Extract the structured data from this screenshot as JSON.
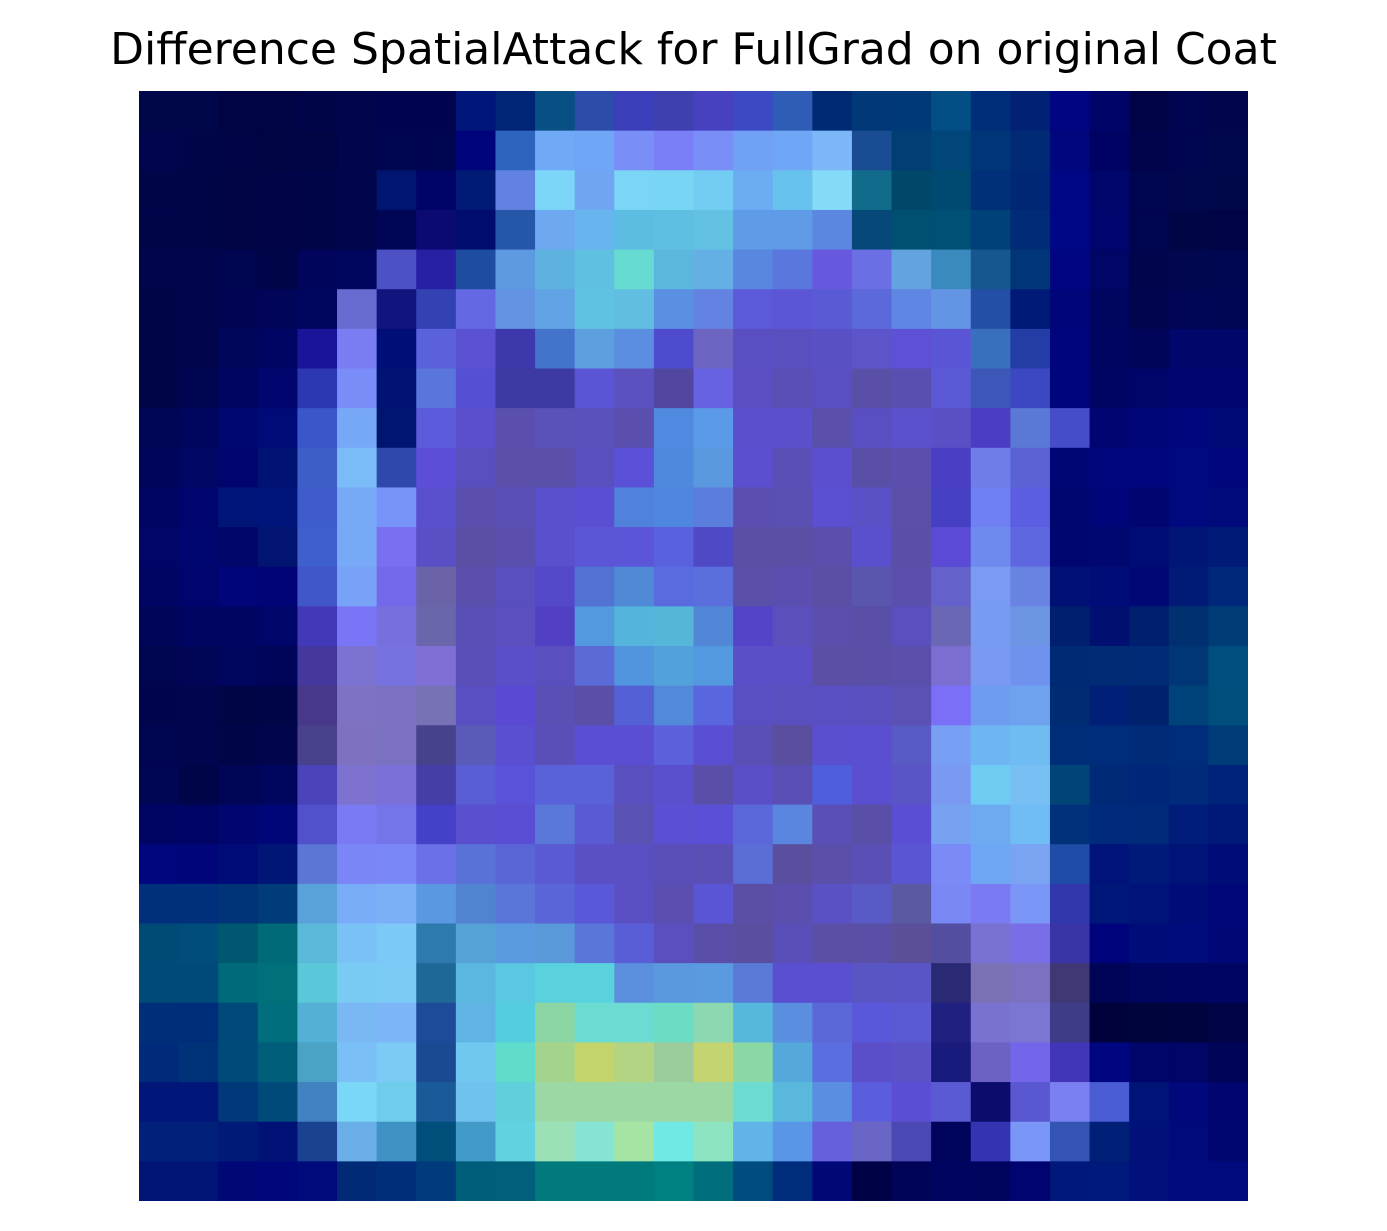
{
  "chart_data": {
    "type": "heatmap",
    "title": "Difference SpatialAttack for FullGrad on original Coat",
    "xlabel": "",
    "ylabel": "",
    "axes": "off",
    "grid": false,
    "legend": "none",
    "rows": 28,
    "cols": 28,
    "colormap": "dark navy background with blue-violet mid tones and cyan/green/yellow highlights (overlay of saliency map on image)",
    "cells_rgb": [
      [
        "#00064a",
        "#00064a",
        "#000445",
        "#000444",
        "#000448",
        "#00054c",
        "#00044e",
        "#00044e",
        "#001678",
        "#002476",
        "#084f83",
        "#2c4ca9",
        "#3a3fb9",
        "#3d40ae",
        "#4741bf",
        "#3b49c3",
        "#2f5db5",
        "#002a74",
        "#003878",
        "#003977",
        "#034e85",
        "#002d79",
        "#002174",
        "#000581",
        "#000469",
        "#000447",
        "#000552",
        "#00054c"
      ],
      [
        "#00054e",
        "#00054a",
        "#000446",
        "#000442",
        "#000445",
        "#00054c",
        "#00054f",
        "#000550",
        "#00047b",
        "#2f64be",
        "#70aaf7",
        "#70a6f6",
        "#7a8ef8",
        "#7a7ff7",
        "#7a8ef8",
        "#70a1f5",
        "#70a6f6",
        "#7cb8f8",
        "#1a4c93",
        "#003e74",
        "#004678",
        "#003577",
        "#002a76",
        "#00077c",
        "#000263",
        "#00034a",
        "#00054f",
        "#00074c"
      ],
      [
        "#00054a",
        "#000548",
        "#000445",
        "#000447",
        "#000448",
        "#00054c",
        "#00156f",
        "#000468",
        "#001a76",
        "#6182e0",
        "#7cd6f8",
        "#70a5f2",
        "#7bd5f6",
        "#79d5f4",
        "#73ccf4",
        "#6cacf2",
        "#67c3ee",
        "#85daf8",
        "#106c8a",
        "#004769",
        "#004970",
        "#003178",
        "#002676",
        "#000784",
        "#00056c",
        "#00054f",
        "#00074c",
        "#00074a"
      ],
      [
        "#00054a",
        "#000548",
        "#000445",
        "#000446",
        "#000449",
        "#00054c",
        "#000555",
        "#0b0a73",
        "#000c6e",
        "#2556a8",
        "#6ea8f0",
        "#67b4ef",
        "#5cbce2",
        "#5fbfe2",
        "#63c1e4",
        "#5f9be6",
        "#5f9be6",
        "#5b87e0",
        "#07487b",
        "#005071",
        "#004f74",
        "#00417a",
        "#002b76",
        "#000786",
        "#00056e",
        "#00054f",
        "#000545",
        "#000446"
      ],
      [
        "#00054c",
        "#00054c",
        "#000550",
        "#000449",
        "#00045a",
        "#00065e",
        "#4c52c5",
        "#2720a5",
        "#1e4da0",
        "#5d9ae2",
        "#5eb2e0",
        "#5fc0e1",
        "#66dbd2",
        "#5cb7de",
        "#64b0e4",
        "#5987e0",
        "#5977dd",
        "#6759de",
        "#6b6fe4",
        "#63a3e0",
        "#3a8abd",
        "#15578e",
        "#003677",
        "#000582",
        "#000566",
        "#00054c",
        "#00074e",
        "#000751"
      ],
      [
        "#000548",
        "#00054c",
        "#000452",
        "#00055a",
        "#00055f",
        "#6a6bd0",
        "#12137c",
        "#3342b3",
        "#6468e2",
        "#6493e4",
        "#62a3e5",
        "#60c2e2",
        "#61bee1",
        "#5a8fe2",
        "#6283e2",
        "#5c5ad9",
        "#5a56d5",
        "#5a5ad5",
        "#5b69da",
        "#5f86e2",
        "#6494e4",
        "#244fa7",
        "#001a78",
        "#00057a",
        "#000560",
        "#00054e",
        "#000556",
        "#000554"
      ],
      [
        "#000548",
        "#00054c",
        "#00065a",
        "#000564",
        "#1a149a",
        "#7a7df2",
        "#000f77",
        "#5b60db",
        "#5a52d2",
        "#3d38ab",
        "#4473cc",
        "#5da0e0",
        "#5b8ee0",
        "#4e4ccd",
        "#6d65c2",
        "#5a4fc2",
        "#5a4fbe",
        "#5a50c6",
        "#5b55c9",
        "#5e51d6",
        "#5a55d4",
        "#3870bd",
        "#243ca5",
        "#00057e",
        "#000562",
        "#00055a",
        "#00066a",
        "#00066a"
      ],
      [
        "#000549",
        "#000552",
        "#000561",
        "#00066e",
        "#2c38b2",
        "#7a8cf7",
        "#001374",
        "#5a76dc",
        "#5550d3",
        "#3d3aa3",
        "#3d3aa3",
        "#5a55d4",
        "#5b52bf",
        "#52479e",
        "#6762e2",
        "#5a4ec2",
        "#5a4fb5",
        "#5a4fc2",
        "#5a4fa7",
        "#584fb0",
        "#5b59d6",
        "#3d57b9",
        "#3c48c2",
        "#00057c",
        "#000564",
        "#00056a",
        "#000570",
        "#000570"
      ],
      [
        "#000556",
        "#00065e",
        "#000870",
        "#000a79",
        "#3b56c9",
        "#77a8f7",
        "#00156f",
        "#5b5bdc",
        "#5b4fcd",
        "#5a4fae",
        "#5a52b8",
        "#5a51bd",
        "#5a4fae",
        "#4f8ae0",
        "#5b9ae6",
        "#5b4fce",
        "#5b4fcc",
        "#5a4fab",
        "#5a4fc2",
        "#5b51cc",
        "#5a4fc4",
        "#4b3dc4",
        "#5a78d5",
        "#454ec8",
        "#000572",
        "#000577",
        "#00077d",
        "#000978"
      ],
      [
        "#00045a",
        "#000664",
        "#00056e",
        "#001273",
        "#3d5ec6",
        "#79bcf7",
        "#2f48ac",
        "#5d4ed8",
        "#5a4fbe",
        "#5a4fa9",
        "#5a4fa9",
        "#5a4fbe",
        "#5b51d8",
        "#4e89dd",
        "#5a98e0",
        "#5b4fd0",
        "#5a4fb4",
        "#5b4fd0",
        "#5a4fa7",
        "#5a4fae",
        "#4a3fc4",
        "#6e7ee8",
        "#5b62d4",
        "#000675",
        "#00077c",
        "#00077e",
        "#00097f",
        "#00067c"
      ],
      [
        "#000462",
        "#00056d",
        "#001578",
        "#00157c",
        "#3e5cc9",
        "#78a9f7",
        "#7793f7",
        "#5a50ce",
        "#5a4fae",
        "#5a4fb5",
        "#5a4fcc",
        "#5a4fd2",
        "#5082dc",
        "#4f86e0",
        "#5b7edd",
        "#5a4fb0",
        "#5a4fb2",
        "#5b4fd2",
        "#5a51c6",
        "#5a50a7",
        "#4540c2",
        "#6e80f2",
        "#5b5ee0",
        "#000670",
        "#00067a",
        "#000570",
        "#000a7e",
        "#000a7a"
      ],
      [
        "#000566",
        "#00066f",
        "#00066a",
        "#001470",
        "#3f5fcc",
        "#77a9f6",
        "#7a6ef1",
        "#5b4fc5",
        "#5a4fa5",
        "#5a4fad",
        "#5a4fcc",
        "#5a56d5",
        "#5b56d8",
        "#5a61de",
        "#5049c6",
        "#5a4fa5",
        "#5a4fa5",
        "#5a4fac",
        "#5a4fcc",
        "#5a4fa7",
        "#5a4ad6",
        "#6e8aef",
        "#5e67e0",
        "#000670",
        "#00076f",
        "#000c76",
        "#001676",
        "#001a78"
      ],
      [
        "#000564",
        "#00056d",
        "#00057a",
        "#000476",
        "#4157c9",
        "#77a2f7",
        "#7469ea",
        "#6a63a8",
        "#5a4fac",
        "#5a4fbf",
        "#5248c8",
        "#5273d2",
        "#5089d6",
        "#5a6bdf",
        "#5a6edc",
        "#5a4fa9",
        "#5a4fb0",
        "#5a4fa5",
        "#5a55ad",
        "#5a4fac",
        "#6561ca",
        "#7a9bf2",
        "#6983e2",
        "#001074",
        "#000c78",
        "#000876",
        "#001a76",
        "#00287a"
      ],
      [
        "#00055a",
        "#000562",
        "#000562",
        "#00056a",
        "#4239b9",
        "#7a74f6",
        "#776fdc",
        "#6a66ab",
        "#5a4fb5",
        "#5a4fbd",
        "#5240c4",
        "#5299e0",
        "#55b4dc",
        "#55b6d8",
        "#5287d8",
        "#5445c8",
        "#5a4fbb",
        "#5a4fad",
        "#5a4fa6",
        "#5a4fbd",
        "#6a67b4",
        "#779bf2",
        "#6c95e4",
        "#00206f",
        "#000f70",
        "#00206f",
        "#00306f",
        "#003c76"
      ],
      [
        "#000550",
        "#000556",
        "#00055f",
        "#00055a",
        "#45389c",
        "#7c72d2",
        "#7672df",
        "#8070d6",
        "#5a4fb8",
        "#5a4fc8",
        "#5a4fbe",
        "#5a6ad6",
        "#5295df",
        "#53a1db",
        "#5299df",
        "#5a4fc7",
        "#5a4fc6",
        "#5a4fa4",
        "#5a4fa6",
        "#5a4fab",
        "#7a6ed0",
        "#7a9af2",
        "#6e92ee",
        "#002a74",
        "#002c76",
        "#002b76",
        "#003676",
        "#004e7e"
      ],
      [
        "#00044c",
        "#00054e",
        "#000546",
        "#000548",
        "#47388a",
        "#7e72c2",
        "#7a72c0",
        "#7772b6",
        "#5a4fc2",
        "#5a49d2",
        "#5a4fb4",
        "#5a4fa7",
        "#5460d6",
        "#5289d8",
        "#5a66de",
        "#5a4fc2",
        "#5a4fbe",
        "#5a4fc2",
        "#5a4fbe",
        "#5b51b5",
        "#7a6ff6",
        "#6e9cee",
        "#6ea2ee",
        "#002c74",
        "#001f76",
        "#00226e",
        "#00437a",
        "#004e7c"
      ],
      [
        "#000552",
        "#00054e",
        "#000448",
        "#00054c",
        "#48418c",
        "#7e72c0",
        "#7a72c0",
        "#47428c",
        "#5a5ab8",
        "#5a4fd0",
        "#5a4fb8",
        "#5a4fd2",
        "#5a4fd2",
        "#5a61da",
        "#5a4fd2",
        "#5a4fb5",
        "#5a4f9e",
        "#5a4fce",
        "#5a4fd0",
        "#5a5ac4",
        "#77a0f4",
        "#6eb6f2",
        "#6ebcf2",
        "#002d78",
        "#002c7c",
        "#002b78",
        "#002c7c",
        "#003c78"
      ],
      [
        "#000554",
        "#000549",
        "#000556",
        "#00055d",
        "#4b43ba",
        "#7e72d0",
        "#7a70d8",
        "#443ea6",
        "#5a5ed4",
        "#5a52d8",
        "#5a62da",
        "#5a62da",
        "#5a4fbe",
        "#5a4fcc",
        "#5a4fa8",
        "#5a4fc6",
        "#5a4fb5",
        "#4e5edc",
        "#5a4fd0",
        "#5a55c6",
        "#7a9af2",
        "#6ecbf2",
        "#78c0f4",
        "#004478",
        "#002a78",
        "#00267a",
        "#002a7a",
        "#00237a"
      ],
      [
        "#000564",
        "#000565",
        "#00066e",
        "#000578",
        "#5151cc",
        "#7a7bf2",
        "#7575ea",
        "#4540c8",
        "#5a4fce",
        "#5a4fd2",
        "#5a78d8",
        "#5a5ad2",
        "#5a51b4",
        "#5a50d4",
        "#5a50d8",
        "#5a68da",
        "#5a86e0",
        "#5a4fb5",
        "#5a4fa6",
        "#5a4fd2",
        "#77a2f2",
        "#6eaaf0",
        "#70bcf4",
        "#00317a",
        "#002a7c",
        "#002a7a",
        "#001c7a",
        "#001878"
      ],
      [
        "#00067e",
        "#000679",
        "#000b7a",
        "#001676",
        "#5c76d6",
        "#7a86f6",
        "#7a88f7",
        "#6c70e6",
        "#5a72d8",
        "#5a66d6",
        "#5a5ad2",
        "#5a4fc4",
        "#5a4fc2",
        "#5a4fb8",
        "#5a4fb4",
        "#5a6ed6",
        "#5a4f9e",
        "#5a4fa9",
        "#5a4fb4",
        "#5a55d2",
        "#7a8af6",
        "#6ea8f4",
        "#7aa3f2",
        "#1e4ca6",
        "#00137a",
        "#001a7a",
        "#001478",
        "#000d78"
      ],
      [
        "#00307c",
        "#00307c",
        "#003378",
        "#003b7a",
        "#5aa2da",
        "#78acf6",
        "#7cb0f6",
        "#5a98e2",
        "#5283d0",
        "#5a76d8",
        "#5a66d8",
        "#5a58d8",
        "#5a4fc2",
        "#5a4fb0",
        "#5a55d4",
        "#5a4fa4",
        "#5a4fae",
        "#5a52c4",
        "#5a5ac6",
        "#5a5aa2",
        "#7a88f6",
        "#7a7af2",
        "#7a96f6",
        "#3038ac",
        "#00177a",
        "#001378",
        "#000c78",
        "#000778"
      ],
      [
        "#004a78",
        "#004c7a",
        "#005870",
        "#006a78",
        "#5ab8d8",
        "#7ac2f6",
        "#7cc8f6",
        "#2f7aac",
        "#55a2d6",
        "#5a9ae0",
        "#5a9adb",
        "#5a76d8",
        "#5a5ed6",
        "#5a4fbc",
        "#5a4fa8",
        "#5a4f9f",
        "#5a4fb8",
        "#5a4fa4",
        "#5a4fa6",
        "#5a4f98",
        "#534ea0",
        "#7a72d2",
        "#7a6ee6",
        "#3a35a6",
        "#00047c",
        "#000c7a",
        "#000b7c",
        "#000878"
      ],
      [
        "#004a7a",
        "#004a7a",
        "#006a7a",
        "#00707a",
        "#5ac8d8",
        "#7acbf4",
        "#7ccbf6",
        "#1e6898",
        "#5ab8e0",
        "#5ac8e0",
        "#5ad2de",
        "#5ad2de",
        "#5a90de",
        "#5a98e0",
        "#5a9ae0",
        "#5a7ad8",
        "#5a4fd0",
        "#5a4fd0",
        "#5a55c4",
        "#5a55c6",
        "#2a2a74",
        "#7a72b4",
        "#7a72c0",
        "#403874",
        "#000456",
        "#000560",
        "#000562",
        "#000564"
      ],
      [
        "#002e78",
        "#002d7a",
        "#00497a",
        "#006e7c",
        "#55b0d8",
        "#7ab8f4",
        "#7cb6f6",
        "#1e4a9a",
        "#60b4e4",
        "#55cde0",
        "#8cd6a4",
        "#6cdcd2",
        "#6cdcd2",
        "#6cdcc4",
        "#8cd8b0",
        "#55b8dc",
        "#5a8ede",
        "#5a68d8",
        "#5a58da",
        "#5a5ad2",
        "#202080",
        "#7a72d0",
        "#7a76d2",
        "#3e3c86",
        "#00023c",
        "#00043c",
        "#00043e",
        "#000446"
      ],
      [
        "#002a7a",
        "#00327a",
        "#004a7a",
        "#005e7a",
        "#4aa2c4",
        "#7ac0f6",
        "#7ccbf6",
        "#1a4a92",
        "#70c8f0",
        "#60dccc",
        "#a4d48c",
        "#c4d46c",
        "#b4d484",
        "#9ccc9c",
        "#c4d470",
        "#8ad8a4",
        "#55a8da",
        "#5a6ee0",
        "#5a4fc8",
        "#5a52c6",
        "#181a7c",
        "#6c62c4",
        "#7466ea",
        "#4236b8",
        "#000680",
        "#00056a",
        "#000566",
        "#000456"
      ],
      [
        "#001678",
        "#001678",
        "#00387a",
        "#004a7a",
        "#4282c0",
        "#7ad8f6",
        "#70cceb",
        "#1a5a98",
        "#70c2ee",
        "#60d0dc",
        "#9cd8a4",
        "#9cd8a4",
        "#9cd8a4",
        "#9cd8a4",
        "#9cd8a4",
        "#6cdcd2",
        "#5ab8dc",
        "#5a8ee0",
        "#5a5edc",
        "#5a4fd4",
        "#5a5ad2",
        "#0c0c6c",
        "#5a58d0",
        "#7a80f2",
        "#4a5cd4",
        "#001478",
        "#00087c",
        "#000570"
      ],
      [
        "#00207a",
        "#00207a",
        "#001a78",
        "#001276",
        "#1a4290",
        "#6aaee8",
        "#3e92c4",
        "#004e7a",
        "#429ac8",
        "#60d2e0",
        "#9ce0b8",
        "#86e4d4",
        "#a6e4a4",
        "#70e8e4",
        "#8ce4c0",
        "#60b4e8",
        "#5a96e8",
        "#6660dc",
        "#6a66c6",
        "#4a48b2",
        "#00045c",
        "#3434b2",
        "#7a96f6",
        "#3454b4",
        "#002078",
        "#00127a",
        "#000a7a",
        "#000670"
      ],
      [
        "#001476",
        "#001476",
        "#000878",
        "#00077a",
        "#000a7a",
        "#002a76",
        "#002e7a",
        "#003c7c",
        "#005e7a",
        "#00607c",
        "#007a7c",
        "#007a7c",
        "#007a7c",
        "#008080",
        "#006e7c",
        "#004c7e",
        "#002c7c",
        "#000878",
        "#000248",
        "#000458",
        "#000460",
        "#00045e",
        "#000470",
        "#00187a",
        "#001a7c",
        "#00107c",
        "#000a7c",
        "#000a7c"
      ]
    ]
  }
}
